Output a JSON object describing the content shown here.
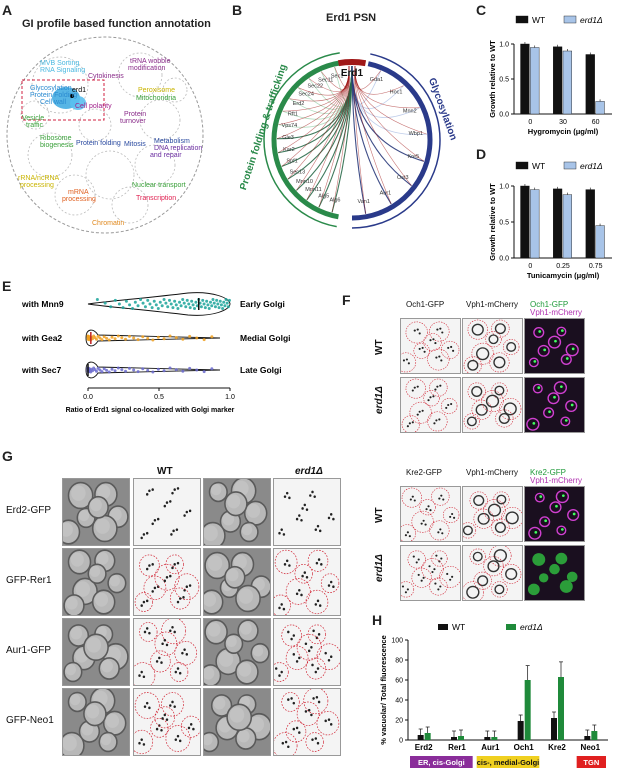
{
  "panelA": {
    "letter": "A",
    "title": "GI profile based function annotation",
    "labels": [
      {
        "text": "MVB Sorting",
        "color": "#4ab8e0"
      },
      {
        "text": "RNA Signaling",
        "color": "#4ab8e0"
      },
      {
        "text": "tRNA wobble",
        "color": "#8a2d8a"
      },
      {
        "text": "modification",
        "color": "#8a2d8a"
      },
      {
        "text": "Cytokinesis",
        "color": "#8a2d8a"
      },
      {
        "text": "Peroxisome",
        "color": "#c9b400"
      },
      {
        "text": "Glycosylation",
        "color": "#2a8ad0"
      },
      {
        "text": "Protein Folding",
        "color": "#2a8ad0"
      },
      {
        "text": "Cell wall",
        "color": "#2a8ad0"
      },
      {
        "text": "Cell polarity",
        "color": "#a0208a"
      },
      {
        "text": "erd1",
        "color": "#000000"
      },
      {
        "text": "Mitochondria",
        "color": "#3aa03a"
      },
      {
        "text": "Vesicle",
        "color": "#3aa03a"
      },
      {
        "text": "traffic",
        "color": "#3aa03a"
      },
      {
        "text": "Protein",
        "color": "#8a2d8a"
      },
      {
        "text": "turnover",
        "color": "#8a2d8a"
      },
      {
        "text": "Ribosome",
        "color": "#3aa03a"
      },
      {
        "text": "biogenesis",
        "color": "#3aa03a"
      },
      {
        "text": "Protein folding",
        "color": "#2a4aa0"
      },
      {
        "text": "Mitosis",
        "color": "#2a4aa0"
      },
      {
        "text": "Metabolism",
        "color": "#2a4aa0"
      },
      {
        "text": "DNA replication",
        "color": "#6a2da0"
      },
      {
        "text": "and repair",
        "color": "#6a2da0"
      },
      {
        "text": "rRNA/ncRNA",
        "color": "#c9b400"
      },
      {
        "text": "processing",
        "color": "#c9b400"
      },
      {
        "text": "Nuclear transport",
        "color": "#3aa03a"
      },
      {
        "text": "mRNA",
        "color": "#e06020"
      },
      {
        "text": "processing",
        "color": "#e06020"
      },
      {
        "text": "Transcription",
        "color": "#e02050"
      },
      {
        "text": "Chromatin",
        "color": "#e08a20"
      }
    ]
  },
  "panelB": {
    "letter": "B",
    "title": "Erd1 PSN",
    "center": "Erd1",
    "left_group": "Protein folding & trafficking",
    "right_group": "Glycosylation",
    "left_genes": [
      "Sec1",
      "Sec11",
      "Sec22",
      "Sec24",
      "Erd2",
      "Rft1",
      "Vps74",
      "Gle3",
      "Kar2",
      "Spf1",
      "Sec13",
      "Mnn10",
      "Mnn11",
      "Alg5",
      "Alg6"
    ],
    "right_genes": [
      "Gda1",
      "Hoc1",
      "Mnn2",
      "Wbp1",
      "Kre5",
      "Ost3",
      "Aur1",
      "Van1"
    ],
    "left_color": "#2a8a4a",
    "right_color": "#2a3a8a",
    "center_color": "#a01818"
  },
  "panelC": {
    "letter": "C",
    "chart_data": {
      "type": "bar",
      "categories": [
        "0",
        "30",
        "60"
      ],
      "series": [
        {
          "name": "WT",
          "values": [
            1.0,
            0.96,
            0.85
          ],
          "color": "#111111"
        },
        {
          "name": "erd1Δ",
          "values": [
            0.95,
            0.9,
            0.18
          ],
          "color": "#a8c4e8"
        }
      ],
      "xlabel": "Hygromycin (μg/ml)",
      "ylabel": "Growth relative to WT",
      "ylim": [
        0,
        1.0
      ],
      "yticks": [
        "0.0",
        "0.5",
        "1.0"
      ]
    }
  },
  "panelD": {
    "letter": "D",
    "chart_data": {
      "type": "bar",
      "categories": [
        "0",
        "0.25",
        "0.75"
      ],
      "series": [
        {
          "name": "WT",
          "values": [
            1.0,
            0.96,
            0.95
          ],
          "color": "#111111"
        },
        {
          "name": "erd1Δ",
          "values": [
            0.95,
            0.88,
            0.45
          ],
          "color": "#a8c4e8"
        }
      ],
      "xlabel": "Tunicamycin (μg/ml)",
      "ylabel": "Growth relative to WT",
      "ylim": [
        0,
        1.0
      ],
      "yticks": [
        "0.0",
        "0.5",
        "1.0"
      ]
    }
  },
  "panelE": {
    "letter": "E",
    "chart_data": {
      "type": "violin",
      "rows": [
        {
          "name": "with Mnn9",
          "right_label": "Early Golgi",
          "color": "#1aa39a",
          "median": 0.78
        },
        {
          "name": "with Gea2",
          "right_label": "Medial Golgi",
          "color": "#f0a020",
          "median": 0.02
        },
        {
          "name": "with Sec7",
          "right_label": "Late Golgi",
          "color": "#6a6acc",
          "median": 0.0
        }
      ],
      "xticks": [
        "0.0",
        "0.5",
        "1.0"
      ],
      "xlabel": "Ratio of Erd1 signal co-localized with Golgi marker"
    }
  },
  "panelF": {
    "letter": "F",
    "top": {
      "cols": [
        "Och1-GFP",
        "Vph1-mCherry"
      ],
      "merge1": "Och1-GFP",
      "merge2": "Vph1-mCherry"
    },
    "bottom": {
      "cols": [
        "Kre2-GFP",
        "Vph1-mCherry"
      ],
      "merge1": "Kre2-GFP",
      "merge2": "Vph1-mCherry"
    },
    "rows": [
      "WT",
      "erd1Δ"
    ]
  },
  "panelG": {
    "letter": "G",
    "headers": [
      "WT",
      "erd1Δ"
    ],
    "rows": [
      "Erd2-GFP",
      "GFP-Rer1",
      "Aur1-GFP",
      "GFP-Neo1"
    ]
  },
  "panelH": {
    "letter": "H",
    "chart_data": {
      "type": "bar",
      "categories": [
        "Erd2",
        "Rer1",
        "Aur1",
        "Och1",
        "Kre2",
        "Neo1"
      ],
      "series": [
        {
          "name": "WT",
          "values": [
            5,
            3,
            3,
            19,
            22,
            4
          ],
          "color": "#111111"
        },
        {
          "name": "erd1Δ",
          "values": [
            7,
            4,
            3,
            60,
            63,
            9
          ],
          "color": "#1f8a3a"
        }
      ],
      "ylabel": "% vacuolar/ Total fluorescence",
      "ylim": [
        0,
        100
      ],
      "yticks": [
        "0",
        "20",
        "40",
        "60",
        "80",
        "100"
      ],
      "groups": [
        {
          "label": "ER, cis-Golgi",
          "color": "#8a2d9a"
        },
        {
          "label": "cis-, medial-Golgi",
          "color": "#f0d020"
        },
        {
          "label": "TGN",
          "color": "#e02020"
        }
      ]
    }
  }
}
